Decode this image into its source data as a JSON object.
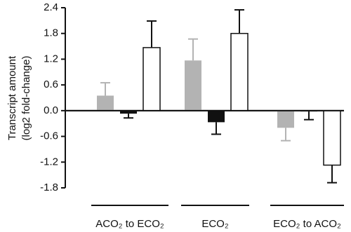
{
  "chart_data": {
    "type": "bar",
    "y_label_lines": [
      "Transcript amount",
      "(log2 fold-change)"
    ],
    "categories": [
      "ACO₂ to ECO₂",
      "ECO₂",
      "ECO₂ to ACO₂"
    ],
    "series": [
      {
        "color": "#b3b3b3",
        "values": [
          0.35,
          1.17,
          -0.4
        ],
        "errors": [
          0.3,
          0.5,
          0.3
        ]
      },
      {
        "color": "#111111",
        "values": [
          -0.07,
          -0.27,
          -0.02
        ],
        "errors": [
          0.1,
          0.28,
          0.19
        ]
      },
      {
        "color": "#ffffff",
        "values": [
          1.47,
          1.8,
          -1.27
        ],
        "errors": [
          0.62,
          0.55,
          0.41
        ]
      }
    ],
    "ylim": [
      -1.8,
      2.4
    ],
    "yticks": [
      2.4,
      1.8,
      1.2,
      0.6,
      {
        "value": 0,
        "label": "0.0"
      },
      -0.6,
      -1.2,
      -1.8
    ]
  }
}
